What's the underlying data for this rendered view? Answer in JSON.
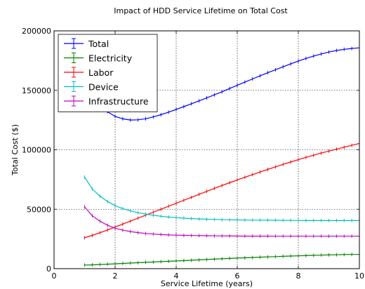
{
  "chart_data": {
    "type": "line",
    "title": "Impact of HDD Service Lifetime on Total Cost",
    "xlabel": "Service Lifetime (years)",
    "ylabel": "Total Cost ($)",
    "xlim": [
      0,
      10
    ],
    "ylim": [
      0,
      200000
    ],
    "xticks": [
      0,
      2,
      4,
      6,
      8,
      10
    ],
    "yticks": [
      0,
      50000,
      100000,
      150000,
      200000
    ],
    "grid": true,
    "legend_position": "top-left",
    "error_bars": true,
    "x": [
      1.0,
      1.25,
      1.5,
      1.75,
      2.0,
      2.25,
      2.5,
      2.75,
      3.0,
      3.25,
      3.5,
      3.75,
      4.0,
      4.25,
      4.5,
      4.75,
      5.0,
      5.25,
      5.5,
      5.75,
      6.0,
      6.25,
      6.5,
      6.75,
      7.0,
      7.25,
      7.5,
      7.75,
      8.0,
      8.25,
      8.5,
      8.75,
      9.0,
      9.25,
      9.5,
      9.75,
      10.0
    ],
    "series": [
      {
        "name": "Total",
        "color": "#0000ff",
        "values": [
          158000,
          146000,
          137500,
          132000,
          128000,
          126000,
          125000,
          125200,
          126100,
          127600,
          129500,
          131600,
          133900,
          136300,
          138700,
          141100,
          143600,
          146200,
          148800,
          151500,
          154200,
          156900,
          159600,
          162200,
          164800,
          167300,
          169800,
          172200,
          174600,
          176800,
          178800,
          180600,
          182200,
          183500,
          184500,
          185200,
          185700
        ]
      },
      {
        "name": "Electricity",
        "color": "#008000",
        "values": [
          3000,
          3200,
          3500,
          3800,
          4100,
          4400,
          4700,
          5000,
          5300,
          5600,
          5900,
          6200,
          6500,
          6800,
          7100,
          7400,
          7700,
          8000,
          8300,
          8600,
          8900,
          9150,
          9400,
          9650,
          9900,
          10150,
          10400,
          10600,
          10800,
          11000,
          11200,
          11400,
          11550,
          11700,
          11850,
          11950,
          12000
        ]
      },
      {
        "name": "Labor",
        "color": "#ff0000",
        "values": [
          26000,
          28000,
          30200,
          32500,
          35000,
          37500,
          40000,
          42500,
          45000,
          47500,
          50000,
          52500,
          55000,
          57500,
          60000,
          62500,
          65000,
          67500,
          70000,
          72300,
          74600,
          76900,
          79100,
          81300,
          83500,
          85600,
          87700,
          89700,
          91700,
          93600,
          95400,
          97200,
          98900,
          100500,
          102100,
          103700,
          105300
        ]
      },
      {
        "name": "Device",
        "color": "#00bfbf",
        "values": [
          77000,
          67000,
          61000,
          56500,
          53000,
          50500,
          48600,
          47100,
          45900,
          44900,
          44100,
          43400,
          42900,
          42500,
          42100,
          41800,
          41600,
          41400,
          41200,
          41100,
          41000,
          40900,
          40850,
          40800,
          40750,
          40700,
          40650,
          40600,
          40550,
          40500,
          40500,
          40500,
          40500,
          40500,
          40500,
          40500,
          40500
        ]
      },
      {
        "name": "Infrastructure",
        "color": "#bf00bf",
        "values": [
          52000,
          44500,
          40000,
          36500,
          34000,
          32400,
          31200,
          30300,
          29600,
          29100,
          28700,
          28400,
          28200,
          28000,
          27900,
          27800,
          27700,
          27600,
          27550,
          27500,
          27450,
          27400,
          27400,
          27350,
          27350,
          27300,
          27300,
          27300,
          27300,
          27300,
          27300,
          27300,
          27300,
          27300,
          27300,
          27300,
          27300
        ]
      }
    ]
  }
}
